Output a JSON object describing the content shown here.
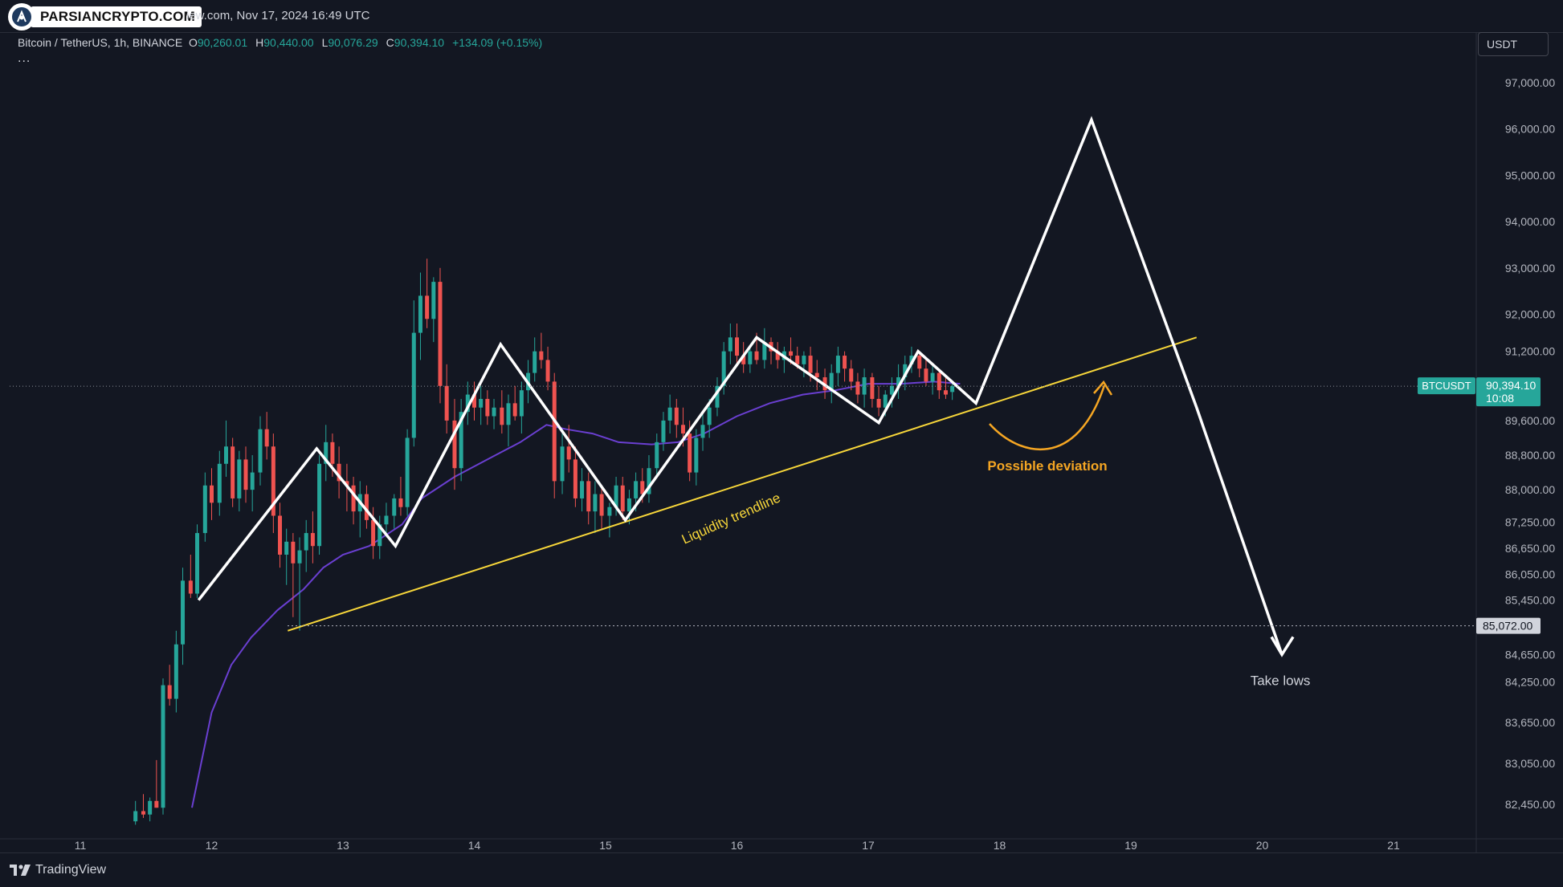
{
  "header": {
    "watermark_logo_text": "PARSIANCRYPTO.COM",
    "snapshot_text": "iew.com, Nov 17, 2024 16:49 UTC",
    "currency_button": "USDT",
    "more_label": "..."
  },
  "legend": {
    "symbol_text": "Bitcoin / TetherUS, 1h, BINANCE",
    "o_label": "O",
    "o_value": "90,260.01",
    "h_label": "H",
    "h_value": "90,440.00",
    "l_label": "L",
    "l_value": "90,076.29",
    "c_label": "C",
    "c_value": "90,394.10",
    "change": "+134.09 (+0.15%)"
  },
  "footer": {
    "brand": "TradingView"
  },
  "colors": {
    "background": "#131722",
    "up": "#26a69a",
    "down": "#ef5350",
    "ma": "#6a3fd1",
    "trendline": "#f7d63a",
    "deviation": "#f5a623",
    "path": "#ffffff"
  },
  "chart_data": {
    "type": "candlestick",
    "price_scale": {
      "labels": [
        "97,000.00",
        "96,000.00",
        "95,000.00",
        "94,000.00",
        "93,000.00",
        "92,000.00",
        "91,200.00",
        "89,600.00",
        "88,800.00",
        "88,000.00",
        "87,250.00",
        "86,650.00",
        "86,050.00",
        "85,450.00",
        "84,650.00",
        "84,250.00",
        "83,650.00",
        "83,050.00",
        "82,450.00"
      ],
      "values": [
        97000,
        96000,
        95000,
        94000,
        93000,
        92000,
        91200,
        89600,
        88800,
        88000,
        87250,
        86650,
        86050,
        85450,
        84650,
        84250,
        83650,
        83050,
        82450
      ]
    },
    "time_scale": {
      "labels": [
        "11",
        "12",
        "13",
        "14",
        "15",
        "16",
        "17",
        "18",
        "19",
        "20",
        "21"
      ],
      "values": [
        11,
        12,
        13,
        14,
        15,
        16,
        17,
        18,
        19,
        20,
        21
      ]
    },
    "current_price": {
      "symbol": "BTCUSDT",
      "value": "90,394.10",
      "countdown": "10:08",
      "price": 90394.1
    },
    "marked_level": {
      "value": "85,072.00",
      "price": 85072
    },
    "candles": [
      {
        "t": 11.42,
        "o": 82200,
        "h": 82500,
        "l": 82150,
        "c": 82350
      },
      {
        "t": 11.48,
        "o": 82350,
        "h": 82600,
        "l": 82250,
        "c": 82300
      },
      {
        "t": 11.53,
        "o": 82300,
        "h": 82550,
        "l": 82200,
        "c": 82500
      },
      {
        "t": 11.58,
        "o": 82500,
        "h": 83100,
        "l": 82400,
        "c": 82400
      },
      {
        "t": 11.63,
        "o": 82400,
        "h": 84300,
        "l": 82300,
        "c": 84200
      },
      {
        "t": 11.68,
        "o": 84200,
        "h": 84500,
        "l": 83900,
        "c": 84000
      },
      {
        "t": 11.73,
        "o": 84000,
        "h": 85000,
        "l": 83800,
        "c": 84800
      },
      {
        "t": 11.78,
        "o": 84800,
        "h": 86200,
        "l": 84500,
        "c": 85900
      },
      {
        "t": 11.84,
        "o": 85900,
        "h": 86500,
        "l": 85500,
        "c": 85600
      },
      {
        "t": 11.89,
        "o": 85600,
        "h": 87200,
        "l": 85500,
        "c": 87000
      },
      {
        "t": 11.95,
        "o": 87000,
        "h": 88400,
        "l": 86800,
        "c": 88100
      },
      {
        "t": 12.0,
        "o": 88100,
        "h": 88500,
        "l": 87300,
        "c": 87700
      },
      {
        "t": 12.06,
        "o": 87700,
        "h": 88900,
        "l": 87400,
        "c": 88600
      },
      {
        "t": 12.11,
        "o": 88600,
        "h": 89600,
        "l": 88300,
        "c": 89000
      },
      {
        "t": 12.16,
        "o": 89000,
        "h": 89200,
        "l": 87600,
        "c": 87800
      },
      {
        "t": 12.21,
        "o": 87800,
        "h": 88900,
        "l": 87500,
        "c": 88700
      },
      {
        "t": 12.26,
        "o": 88700,
        "h": 89000,
        "l": 87700,
        "c": 88000
      },
      {
        "t": 12.31,
        "o": 88000,
        "h": 88800,
        "l": 87500,
        "c": 88400
      },
      {
        "t": 12.37,
        "o": 88400,
        "h": 89700,
        "l": 88100,
        "c": 89400
      },
      {
        "t": 12.42,
        "o": 89400,
        "h": 89800,
        "l": 88700,
        "c": 89000
      },
      {
        "t": 12.47,
        "o": 89000,
        "h": 89300,
        "l": 87000,
        "c": 87400
      },
      {
        "t": 12.52,
        "o": 87400,
        "h": 87700,
        "l": 86200,
        "c": 86500
      },
      {
        "t": 12.57,
        "o": 86500,
        "h": 87100,
        "l": 85800,
        "c": 86800
      },
      {
        "t": 12.62,
        "o": 86800,
        "h": 87000,
        "l": 85200,
        "c": 86300
      },
      {
        "t": 12.67,
        "o": 86300,
        "h": 86900,
        "l": 85000,
        "c": 86600
      },
      {
        "t": 12.72,
        "o": 86600,
        "h": 87300,
        "l": 86100,
        "c": 87000
      },
      {
        "t": 12.77,
        "o": 87000,
        "h": 87500,
        "l": 86300,
        "c": 86700
      },
      {
        "t": 12.82,
        "o": 86700,
        "h": 88800,
        "l": 86500,
        "c": 88600
      },
      {
        "t": 12.87,
        "o": 88600,
        "h": 89500,
        "l": 88200,
        "c": 89100
      },
      {
        "t": 12.92,
        "o": 89100,
        "h": 89300,
        "l": 88300,
        "c": 88600
      },
      {
        "t": 12.97,
        "o": 88600,
        "h": 89000,
        "l": 87800,
        "c": 88200
      },
      {
        "t": 13.03,
        "o": 88200,
        "h": 88600,
        "l": 87500,
        "c": 88100
      },
      {
        "t": 13.08,
        "o": 88100,
        "h": 88300,
        "l": 87200,
        "c": 87500
      },
      {
        "t": 13.13,
        "o": 87500,
        "h": 88200,
        "l": 86900,
        "c": 87900
      },
      {
        "t": 13.18,
        "o": 87900,
        "h": 88100,
        "l": 87100,
        "c": 87300
      },
      {
        "t": 13.23,
        "o": 87300,
        "h": 87600,
        "l": 86400,
        "c": 86700
      },
      {
        "t": 13.28,
        "o": 86700,
        "h": 87400,
        "l": 86400,
        "c": 87200
      },
      {
        "t": 13.33,
        "o": 87200,
        "h": 87700,
        "l": 86900,
        "c": 87400
      },
      {
        "t": 13.39,
        "o": 87400,
        "h": 87900,
        "l": 87100,
        "c": 87800
      },
      {
        "t": 13.44,
        "o": 87800,
        "h": 88300,
        "l": 87400,
        "c": 87600
      },
      {
        "t": 13.49,
        "o": 87600,
        "h": 89400,
        "l": 87400,
        "c": 89200
      },
      {
        "t": 13.54,
        "o": 89200,
        "h": 92300,
        "l": 89000,
        "c": 91600
      },
      {
        "t": 13.59,
        "o": 91600,
        "h": 92900,
        "l": 91000,
        "c": 92400
      },
      {
        "t": 13.64,
        "o": 92400,
        "h": 93200,
        "l": 91700,
        "c": 91900
      },
      {
        "t": 13.69,
        "o": 91900,
        "h": 92800,
        "l": 91400,
        "c": 92700
      },
      {
        "t": 13.74,
        "o": 92700,
        "h": 93000,
        "l": 90000,
        "c": 90400
      },
      {
        "t": 13.79,
        "o": 90400,
        "h": 90900,
        "l": 89300,
        "c": 89600
      },
      {
        "t": 13.85,
        "o": 89600,
        "h": 90100,
        "l": 88000,
        "c": 88500
      },
      {
        "t": 13.9,
        "o": 88500,
        "h": 90100,
        "l": 88200,
        "c": 89800
      },
      {
        "t": 13.95,
        "o": 89800,
        "h": 90500,
        "l": 89500,
        "c": 90200
      },
      {
        "t": 14.0,
        "o": 90200,
        "h": 90500,
        "l": 89600,
        "c": 89900
      },
      {
        "t": 14.05,
        "o": 89900,
        "h": 90400,
        "l": 89500,
        "c": 90100
      },
      {
        "t": 14.1,
        "o": 90100,
        "h": 90300,
        "l": 89500,
        "c": 89700
      },
      {
        "t": 14.15,
        "o": 89700,
        "h": 90100,
        "l": 89400,
        "c": 89900
      },
      {
        "t": 14.21,
        "o": 89900,
        "h": 90300,
        "l": 89300,
        "c": 89500
      },
      {
        "t": 14.26,
        "o": 89500,
        "h": 90200,
        "l": 89000,
        "c": 90000
      },
      {
        "t": 14.31,
        "o": 90000,
        "h": 90400,
        "l": 89600,
        "c": 89700
      },
      {
        "t": 14.36,
        "o": 89700,
        "h": 90500,
        "l": 89300,
        "c": 90300
      },
      {
        "t": 14.41,
        "o": 90300,
        "h": 91000,
        "l": 90000,
        "c": 90700
      },
      {
        "t": 14.46,
        "o": 90700,
        "h": 91500,
        "l": 90500,
        "c": 91200
      },
      {
        "t": 14.51,
        "o": 91200,
        "h": 91600,
        "l": 90800,
        "c": 91000
      },
      {
        "t": 14.56,
        "o": 91000,
        "h": 91300,
        "l": 90300,
        "c": 90500
      },
      {
        "t": 14.61,
        "o": 90500,
        "h": 90700,
        "l": 87800,
        "c": 88200
      },
      {
        "t": 14.67,
        "o": 88200,
        "h": 89300,
        "l": 87900,
        "c": 89000
      },
      {
        "t": 14.72,
        "o": 89000,
        "h": 89500,
        "l": 88400,
        "c": 88700
      },
      {
        "t": 14.77,
        "o": 88700,
        "h": 89000,
        "l": 87600,
        "c": 87800
      },
      {
        "t": 14.82,
        "o": 87800,
        "h": 88500,
        "l": 87500,
        "c": 88200
      },
      {
        "t": 14.87,
        "o": 88200,
        "h": 88400,
        "l": 87200,
        "c": 87500
      },
      {
        "t": 14.92,
        "o": 87500,
        "h": 88200,
        "l": 87000,
        "c": 87900
      },
      {
        "t": 14.97,
        "o": 87900,
        "h": 88100,
        "l": 87100,
        "c": 87400
      },
      {
        "t": 15.03,
        "o": 87400,
        "h": 87700,
        "l": 86900,
        "c": 87600
      },
      {
        "t": 15.08,
        "o": 87600,
        "h": 88300,
        "l": 87400,
        "c": 88100
      },
      {
        "t": 15.13,
        "o": 88100,
        "h": 88300,
        "l": 87300,
        "c": 87500
      },
      {
        "t": 15.18,
        "o": 87500,
        "h": 88000,
        "l": 87200,
        "c": 87800
      },
      {
        "t": 15.23,
        "o": 87800,
        "h": 88400,
        "l": 87500,
        "c": 88200
      },
      {
        "t": 15.28,
        "o": 88200,
        "h": 88500,
        "l": 87700,
        "c": 87900
      },
      {
        "t": 15.33,
        "o": 87900,
        "h": 88800,
        "l": 87700,
        "c": 88500
      },
      {
        "t": 15.39,
        "o": 88500,
        "h": 89300,
        "l": 88300,
        "c": 89100
      },
      {
        "t": 15.44,
        "o": 89100,
        "h": 89800,
        "l": 88900,
        "c": 89600
      },
      {
        "t": 15.49,
        "o": 89600,
        "h": 90200,
        "l": 89300,
        "c": 89900
      },
      {
        "t": 15.54,
        "o": 89900,
        "h": 90100,
        "l": 89200,
        "c": 89500
      },
      {
        "t": 15.59,
        "o": 89500,
        "h": 89900,
        "l": 89000,
        "c": 89300
      },
      {
        "t": 15.64,
        "o": 89300,
        "h": 89600,
        "l": 88200,
        "c": 88400
      },
      {
        "t": 15.69,
        "o": 88400,
        "h": 89400,
        "l": 88100,
        "c": 89200
      },
      {
        "t": 15.74,
        "o": 89200,
        "h": 89800,
        "l": 88900,
        "c": 89500
      },
      {
        "t": 15.79,
        "o": 89500,
        "h": 90100,
        "l": 89200,
        "c": 89900
      },
      {
        "t": 15.85,
        "o": 89900,
        "h": 90600,
        "l": 89700,
        "c": 90400
      },
      {
        "t": 15.9,
        "o": 90400,
        "h": 91400,
        "l": 90200,
        "c": 91200
      },
      {
        "t": 15.95,
        "o": 91200,
        "h": 91800,
        "l": 90900,
        "c": 91500
      },
      {
        "t": 16.0,
        "o": 91500,
        "h": 91800,
        "l": 90900,
        "c": 91100
      },
      {
        "t": 16.05,
        "o": 91100,
        "h": 91400,
        "l": 90700,
        "c": 90900
      },
      {
        "t": 16.1,
        "o": 90900,
        "h": 91300,
        "l": 90700,
        "c": 91200
      },
      {
        "t": 16.15,
        "o": 91200,
        "h": 91600,
        "l": 90900,
        "c": 91000
      },
      {
        "t": 16.21,
        "o": 91000,
        "h": 91700,
        "l": 90800,
        "c": 91400
      },
      {
        "t": 16.26,
        "o": 91400,
        "h": 91500,
        "l": 90900,
        "c": 91200
      },
      {
        "t": 16.31,
        "o": 91200,
        "h": 91400,
        "l": 90800,
        "c": 91000
      },
      {
        "t": 16.36,
        "o": 91000,
        "h": 91300,
        "l": 90700,
        "c": 91200
      },
      {
        "t": 16.41,
        "o": 91200,
        "h": 91500,
        "l": 90900,
        "c": 91100
      },
      {
        "t": 16.46,
        "o": 91100,
        "h": 91300,
        "l": 90800,
        "c": 90900
      },
      {
        "t": 16.51,
        "o": 90900,
        "h": 91200,
        "l": 90600,
        "c": 91100
      },
      {
        "t": 16.56,
        "o": 91100,
        "h": 91300,
        "l": 90500,
        "c": 90700
      },
      {
        "t": 16.61,
        "o": 90700,
        "h": 91000,
        "l": 90300,
        "c": 90600
      },
      {
        "t": 16.67,
        "o": 90600,
        "h": 90800,
        "l": 90100,
        "c": 90300
      },
      {
        "t": 16.72,
        "o": 90300,
        "h": 90900,
        "l": 90000,
        "c": 90700
      },
      {
        "t": 16.77,
        "o": 90700,
        "h": 91300,
        "l": 90400,
        "c": 91100
      },
      {
        "t": 16.82,
        "o": 91100,
        "h": 91200,
        "l": 90500,
        "c": 90800
      },
      {
        "t": 16.87,
        "o": 90800,
        "h": 91000,
        "l": 90300,
        "c": 90500
      },
      {
        "t": 16.92,
        "o": 90500,
        "h": 90700,
        "l": 90000,
        "c": 90200
      },
      {
        "t": 16.97,
        "o": 90200,
        "h": 90800,
        "l": 89900,
        "c": 90600
      },
      {
        "t": 17.03,
        "o": 90600,
        "h": 90700,
        "l": 89900,
        "c": 90100
      },
      {
        "t": 17.08,
        "o": 90100,
        "h": 90400,
        "l": 89700,
        "c": 89900
      },
      {
        "t": 17.13,
        "o": 89900,
        "h": 90300,
        "l": 89700,
        "c": 90200
      },
      {
        "t": 17.18,
        "o": 90200,
        "h": 90600,
        "l": 89900,
        "c": 90400
      },
      {
        "t": 17.23,
        "o": 90400,
        "h": 90900,
        "l": 90100,
        "c": 90600
      },
      {
        "t": 17.28,
        "o": 90600,
        "h": 91100,
        "l": 90300,
        "c": 90900
      },
      {
        "t": 17.33,
        "o": 90900,
        "h": 91300,
        "l": 90700,
        "c": 91100
      },
      {
        "t": 17.39,
        "o": 91100,
        "h": 91200,
        "l": 90600,
        "c": 90800
      },
      {
        "t": 17.44,
        "o": 90800,
        "h": 91000,
        "l": 90400,
        "c": 90500
      },
      {
        "t": 17.49,
        "o": 90500,
        "h": 90900,
        "l": 90200,
        "c": 90700
      },
      {
        "t": 17.54,
        "o": 90700,
        "h": 90800,
        "l": 90100,
        "c": 90300
      },
      {
        "t": 17.59,
        "o": 90300,
        "h": 90600,
        "l": 90100,
        "c": 90200
      },
      {
        "t": 17.64,
        "o": 90260,
        "h": 90440,
        "l": 90076,
        "c": 90394
      }
    ],
    "moving_average": {
      "points": [
        [
          11.85,
          82400
        ],
        [
          12.0,
          83800
        ],
        [
          12.15,
          84500
        ],
        [
          12.3,
          84900
        ],
        [
          12.5,
          85300
        ],
        [
          12.7,
          85700
        ],
        [
          12.85,
          86200
        ],
        [
          13.0,
          86500
        ],
        [
          13.2,
          86700
        ],
        [
          13.45,
          87200
        ],
        [
          13.6,
          87800
        ],
        [
          13.85,
          88300
        ],
        [
          14.1,
          88700
        ],
        [
          14.35,
          89100
        ],
        [
          14.55,
          89500
        ],
        [
          14.7,
          89400
        ],
        [
          14.9,
          89300
        ],
        [
          15.1,
          89100
        ],
        [
          15.35,
          89050
        ],
        [
          15.55,
          89100
        ],
        [
          15.75,
          89300
        ],
        [
          16.0,
          89700
        ],
        [
          16.25,
          90000
        ],
        [
          16.5,
          90200
        ],
        [
          16.75,
          90300
        ],
        [
          17.0,
          90450
        ],
        [
          17.25,
          90450
        ],
        [
          17.5,
          90500
        ],
        [
          17.7,
          90450
        ]
      ]
    },
    "swing_path": {
      "points": [
        [
          11.9,
          85450
        ],
        [
          12.8,
          88950
        ],
        [
          13.4,
          86700
        ],
        [
          14.2,
          91350
        ],
        [
          15.15,
          87300
        ],
        [
          16.15,
          91500
        ],
        [
          17.08,
          89550
        ],
        [
          17.38,
          91200
        ],
        [
          17.82,
          90000
        ],
        [
          18.7,
          96200
        ],
        [
          19.5,
          89900
        ],
        [
          20.15,
          84650
        ]
      ]
    },
    "trendline": {
      "from": [
        12.58,
        85000
      ],
      "to": [
        19.5,
        91500
      ],
      "label": "Liquidity trendline"
    },
    "deviation": {
      "label": "Possible deviation"
    },
    "target": {
      "label": "Take lows"
    }
  }
}
